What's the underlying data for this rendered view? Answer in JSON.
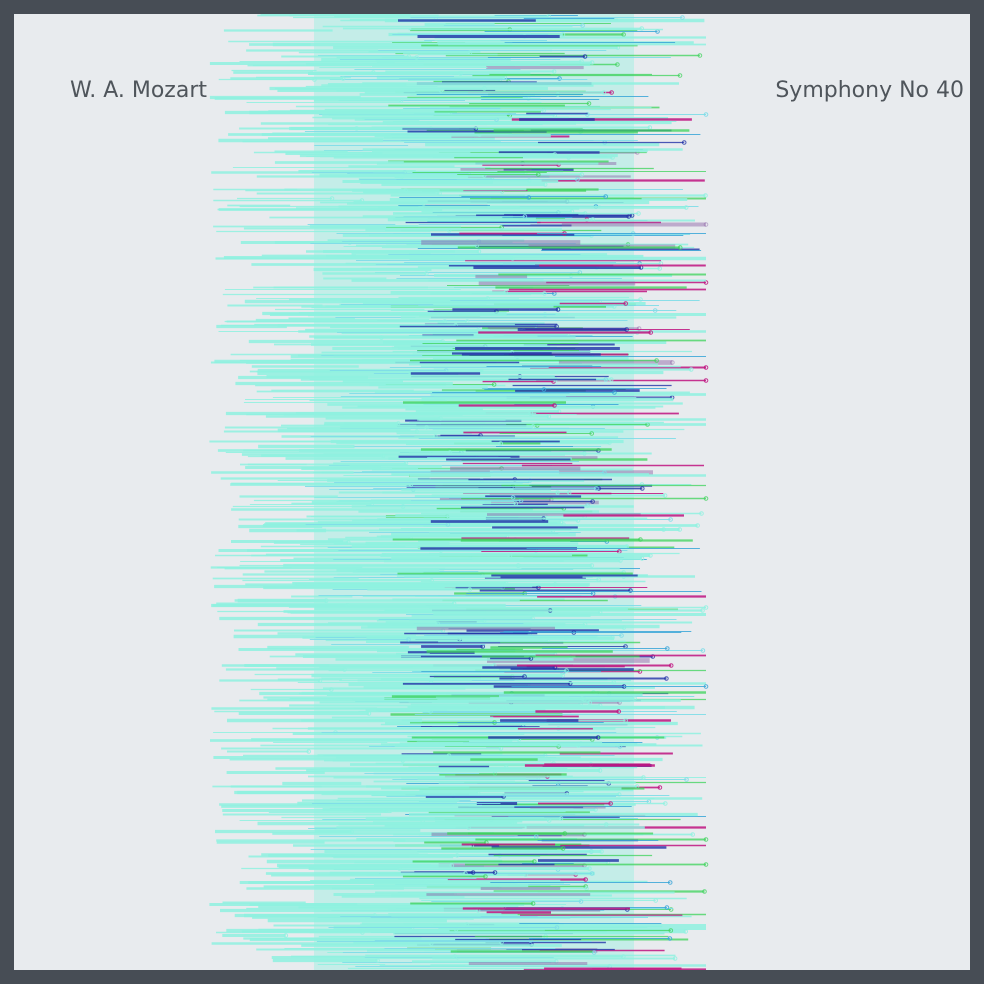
{
  "artwork": {
    "composer": "W. A. Mozart",
    "title": "Symphony No 40"
  },
  "colors": {
    "outer_frame": "#474d55",
    "background": "#e8ebee",
    "text": "#4f555b",
    "palette": [
      "#8ff2e0",
      "#7fdde8",
      "#3aa6d8",
      "#2233a8",
      "#3cd35a",
      "#8a5fa5",
      "#c01480",
      "#b5c4cc"
    ]
  }
}
